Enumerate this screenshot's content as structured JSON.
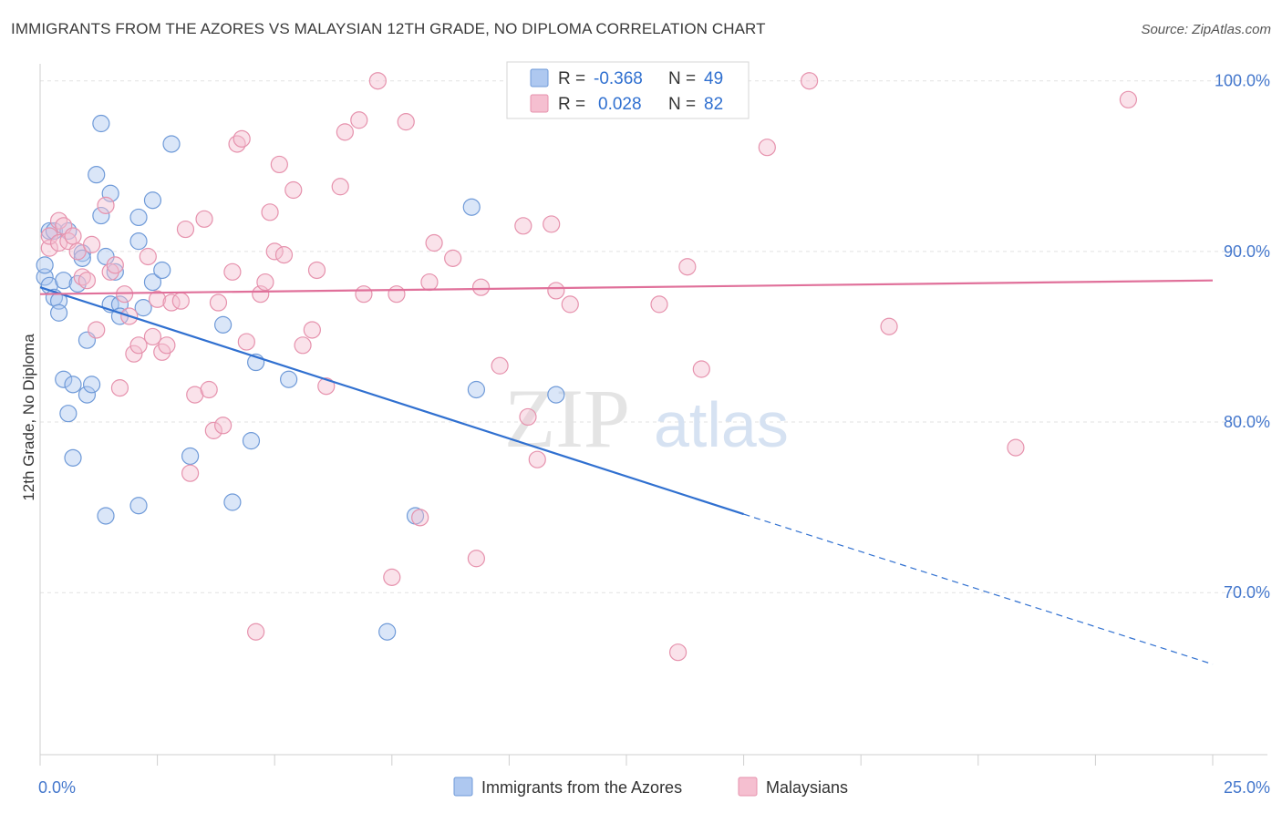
{
  "title": "IMMIGRANTS FROM THE AZORES VS MALAYSIAN 12TH GRADE, NO DIPLOMA CORRELATION CHART",
  "source": "Source: ZipAtlas.com",
  "watermark": {
    "zip": "ZIP",
    "atlas": "atlas"
  },
  "colors": {
    "azores_fill": "#aec8f0",
    "azores_stroke": "#6f9ad8",
    "azores_line": "#3070d0",
    "malaysian_fill": "#f5bfd0",
    "malaysian_stroke": "#e692ad",
    "malaysian_line": "#e0709a",
    "grid": "#e2e2e2",
    "axis_text": "#4477cc"
  },
  "legend": {
    "rows": [
      {
        "r_label": "R =",
        "r_value": "-0.368",
        "n_label": "N =",
        "n_value": "49"
      },
      {
        "r_label": "R =",
        "r_value": "0.028",
        "n_label": "N =",
        "n_value": "82"
      }
    ]
  },
  "chart_data": {
    "type": "scatter",
    "title": "IMMIGRANTS FROM THE AZORES VS MALAYSIAN 12TH GRADE, NO DIPLOMA CORRELATION CHART",
    "xlabel": "",
    "ylabel": "12th Grade, No Diploma",
    "xlim": [
      0,
      25
    ],
    "ylim": [
      60.5,
      101
    ],
    "x_tick_labels": [
      {
        "value": 0,
        "label": "0.0%"
      },
      {
        "value": 25,
        "label": "25.0%"
      }
    ],
    "y_tick_labels": [
      {
        "value": 70,
        "label": "70.0%"
      },
      {
        "value": 80,
        "label": "80.0%"
      },
      {
        "value": 90,
        "label": "90.0%"
      },
      {
        "value": 100,
        "label": "100.0%"
      }
    ],
    "grid": true,
    "legend_position": "top-center",
    "series": [
      {
        "name": "Immigrants from the Azores",
        "color": "#aec8f0",
        "trend": {
          "x0": 0.0,
          "y0": 87.9,
          "x1": 15.0,
          "y1": 74.6,
          "dash_to_x": 25.0,
          "dash_to_y": 65.8
        },
        "points": [
          [
            0.1,
            88.5
          ],
          [
            0.1,
            89.2
          ],
          [
            0.2,
            91.2
          ],
          [
            0.2,
            88.0
          ],
          [
            0.3,
            91.2
          ],
          [
            0.3,
            87.3
          ],
          [
            0.4,
            87.1
          ],
          [
            0.4,
            86.4
          ],
          [
            0.5,
            82.5
          ],
          [
            0.5,
            88.3
          ],
          [
            0.6,
            91.2
          ],
          [
            0.6,
            80.5
          ],
          [
            0.7,
            82.2
          ],
          [
            0.7,
            77.9
          ],
          [
            0.8,
            88.1
          ],
          [
            0.9,
            89.9
          ],
          [
            0.9,
            89.6
          ],
          [
            1.0,
            81.6
          ],
          [
            1.0,
            84.8
          ],
          [
            1.1,
            82.2
          ],
          [
            1.2,
            94.5
          ],
          [
            1.3,
            97.5
          ],
          [
            1.3,
            92.1
          ],
          [
            1.4,
            89.7
          ],
          [
            1.4,
            74.5
          ],
          [
            1.5,
            93.4
          ],
          [
            1.5,
            86.9
          ],
          [
            1.6,
            88.8
          ],
          [
            1.7,
            86.9
          ],
          [
            1.7,
            86.2
          ],
          [
            2.1,
            92.0
          ],
          [
            2.1,
            90.6
          ],
          [
            2.1,
            75.1
          ],
          [
            2.2,
            86.7
          ],
          [
            2.4,
            93.0
          ],
          [
            2.4,
            88.2
          ],
          [
            2.6,
            88.9
          ],
          [
            2.8,
            96.3
          ],
          [
            3.2,
            78.0
          ],
          [
            3.9,
            85.7
          ],
          [
            4.1,
            75.3
          ],
          [
            4.5,
            78.9
          ],
          [
            4.6,
            83.5
          ],
          [
            5.3,
            82.5
          ],
          [
            7.4,
            67.7
          ],
          [
            8.0,
            74.5
          ],
          [
            9.2,
            92.6
          ],
          [
            9.3,
            81.9
          ],
          [
            11.0,
            81.6
          ]
        ]
      },
      {
        "name": "Malaysians",
        "color": "#f5bfd0",
        "trend": {
          "x0": 0.0,
          "y0": 87.5,
          "x1": 25.0,
          "y1": 88.3
        },
        "points": [
          [
            0.2,
            90.2
          ],
          [
            0.2,
            90.9
          ],
          [
            0.4,
            90.5
          ],
          [
            0.4,
            91.8
          ],
          [
            0.5,
            91.5
          ],
          [
            0.6,
            90.6
          ],
          [
            0.7,
            90.9
          ],
          [
            0.8,
            90.0
          ],
          [
            0.9,
            88.5
          ],
          [
            1.0,
            88.3
          ],
          [
            1.1,
            90.4
          ],
          [
            1.2,
            85.4
          ],
          [
            1.4,
            92.7
          ],
          [
            1.5,
            88.8
          ],
          [
            1.6,
            89.2
          ],
          [
            1.7,
            82.0
          ],
          [
            1.8,
            87.5
          ],
          [
            1.9,
            86.2
          ],
          [
            2.0,
            84.0
          ],
          [
            2.1,
            84.5
          ],
          [
            2.3,
            89.7
          ],
          [
            2.4,
            85.0
          ],
          [
            2.5,
            87.2
          ],
          [
            2.6,
            84.1
          ],
          [
            2.7,
            84.5
          ],
          [
            2.8,
            87.0
          ],
          [
            3.0,
            87.1
          ],
          [
            3.1,
            91.3
          ],
          [
            3.2,
            77.0
          ],
          [
            3.3,
            81.6
          ],
          [
            3.5,
            91.9
          ],
          [
            3.6,
            81.9
          ],
          [
            3.7,
            79.5
          ],
          [
            3.8,
            87.0
          ],
          [
            3.9,
            79.8
          ],
          [
            4.1,
            88.8
          ],
          [
            4.2,
            96.3
          ],
          [
            4.3,
            96.6
          ],
          [
            4.4,
            84.7
          ],
          [
            4.6,
            67.7
          ],
          [
            4.7,
            87.5
          ],
          [
            4.8,
            88.2
          ],
          [
            4.9,
            92.3
          ],
          [
            5.0,
            90.0
          ],
          [
            5.1,
            95.1
          ],
          [
            5.2,
            89.8
          ],
          [
            5.4,
            93.6
          ],
          [
            5.6,
            84.5
          ],
          [
            5.8,
            85.4
          ],
          [
            5.9,
            88.9
          ],
          [
            6.1,
            82.1
          ],
          [
            6.4,
            93.8
          ],
          [
            6.5,
            97.0
          ],
          [
            6.8,
            97.7
          ],
          [
            6.9,
            87.5
          ],
          [
            7.2,
            100.0
          ],
          [
            7.5,
            70.9
          ],
          [
            7.6,
            87.5
          ],
          [
            7.8,
            97.6
          ],
          [
            8.1,
            74.4
          ],
          [
            8.3,
            88.2
          ],
          [
            8.4,
            90.5
          ],
          [
            8.8,
            89.6
          ],
          [
            9.3,
            72.0
          ],
          [
            9.4,
            87.9
          ],
          [
            9.8,
            83.3
          ],
          [
            10.3,
            91.5
          ],
          [
            10.4,
            80.3
          ],
          [
            10.6,
            77.8
          ],
          [
            10.9,
            91.6
          ],
          [
            11.0,
            87.7
          ],
          [
            11.3,
            86.9
          ],
          [
            11.5,
            100.0
          ],
          [
            13.2,
            86.9
          ],
          [
            13.6,
            66.5
          ],
          [
            13.8,
            89.1
          ],
          [
            14.1,
            83.1
          ],
          [
            15.5,
            96.1
          ],
          [
            16.4,
            100.0
          ],
          [
            18.1,
            85.6
          ],
          [
            20.8,
            78.5
          ],
          [
            23.2,
            98.9
          ]
        ]
      }
    ]
  }
}
